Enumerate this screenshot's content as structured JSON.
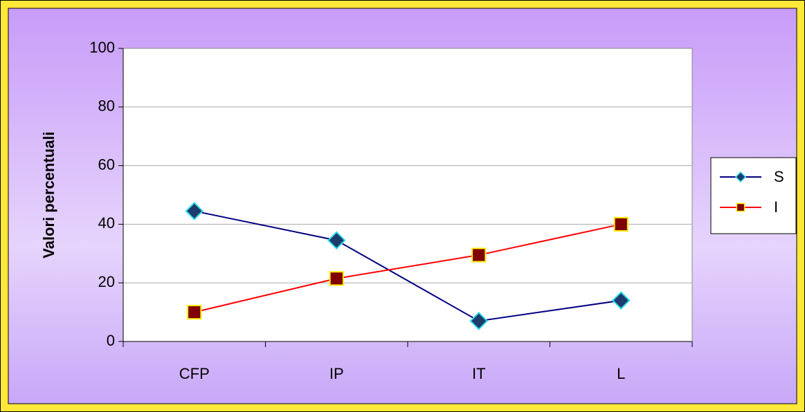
{
  "chart_data": {
    "type": "line",
    "ylabel": "Valori percentuali",
    "categories": [
      "CFP",
      "IP",
      "IT",
      "L"
    ],
    "series": [
      {
        "name": "S",
        "color": "#000080",
        "marker": "diamond",
        "marker_fill": "#1c3c6c",
        "marker_edge": "#33ddee",
        "values": [
          44.5,
          34.5,
          7,
          14
        ]
      },
      {
        "name": "I",
        "color": "#ff0000",
        "marker": "square",
        "marker_fill": "#800000",
        "marker_edge": "#ffee00",
        "values": [
          10,
          21.5,
          29.5,
          40
        ]
      }
    ],
    "ylim": [
      0,
      100
    ],
    "yticks": [
      0,
      20,
      40,
      60,
      80,
      100
    ],
    "grid": true,
    "legend": "right"
  }
}
